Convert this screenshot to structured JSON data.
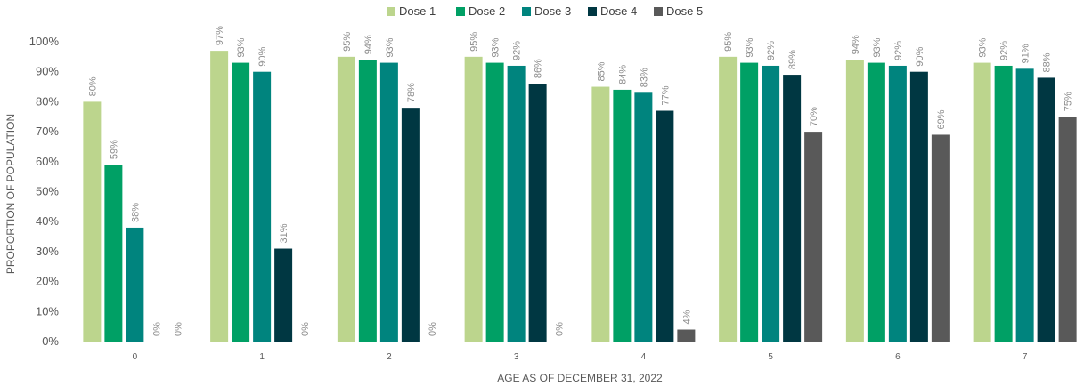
{
  "chart_data": {
    "type": "bar",
    "title": "",
    "xlabel": "AGE AS OF DECEMBER 31, 2022",
    "ylabel": "PROPORTION OF POPULATION",
    "ylim": [
      0,
      100
    ],
    "yticks": [
      "0%",
      "10%",
      "20%",
      "30%",
      "40%",
      "50%",
      "60%",
      "70%",
      "80%",
      "90%",
      "100%"
    ],
    "grid": false,
    "legend_position": "top",
    "categories": [
      "0",
      "1",
      "2",
      "3",
      "4",
      "5",
      "6",
      "7"
    ],
    "series": [
      {
        "name": "Dose 1",
        "color": "#bcd58d",
        "values": [
          80,
          97,
          95,
          95,
          85,
          95,
          94,
          93
        ]
      },
      {
        "name": "Dose 2",
        "color": "#00a065",
        "values": [
          59,
          93,
          94,
          93,
          84,
          93,
          93,
          92
        ]
      },
      {
        "name": "Dose 3",
        "color": "#00847e",
        "values": [
          38,
          90,
          93,
          92,
          83,
          92,
          92,
          91
        ]
      },
      {
        "name": "Dose 4",
        "color": "#003742",
        "values": [
          0,
          31,
          78,
          86,
          77,
          89,
          90,
          88
        ]
      },
      {
        "name": "Dose 5",
        "color": "#595959",
        "values": [
          0,
          0,
          0,
          0,
          4,
          70,
          69,
          75
        ]
      }
    ],
    "value_suffix": "%"
  }
}
